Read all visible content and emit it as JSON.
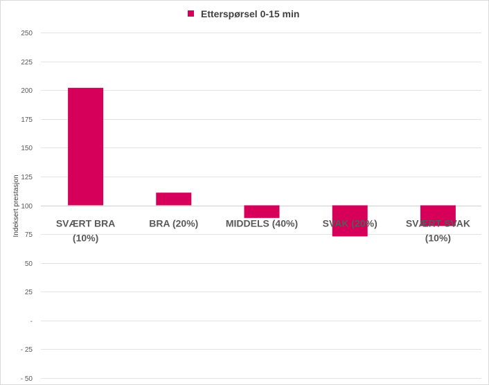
{
  "chart_data": {
    "type": "bar",
    "title": "",
    "ylabel": "Indeksert prestasjon",
    "xlabel": "",
    "categories": [
      [
        "SVÆRT BRA",
        "(10%)"
      ],
      [
        "BRA (20%)"
      ],
      [
        "MIDDELS (40%)"
      ],
      [
        "SVAK (20%)"
      ],
      [
        "SVÆRT SVAK",
        "(10%)"
      ]
    ],
    "series": [
      {
        "name": "Etterspørsel 0-15 min",
        "color": "#d6005a",
        "values": [
          202,
          111,
          89,
          73,
          82
        ]
      }
    ],
    "baseline": 100,
    "ylim": [
      -50,
      250
    ],
    "yticks": [
      250,
      225,
      200,
      175,
      150,
      125,
      100,
      75,
      50,
      25,
      0,
      -25,
      -50
    ],
    "ytick_labels": [
      "250",
      "225",
      "200",
      "175",
      "150",
      "125",
      "100",
      "75",
      "50",
      "25",
      "-",
      "- 25",
      "- 50"
    ],
    "grid": true,
    "legend_position": "top-center"
  }
}
